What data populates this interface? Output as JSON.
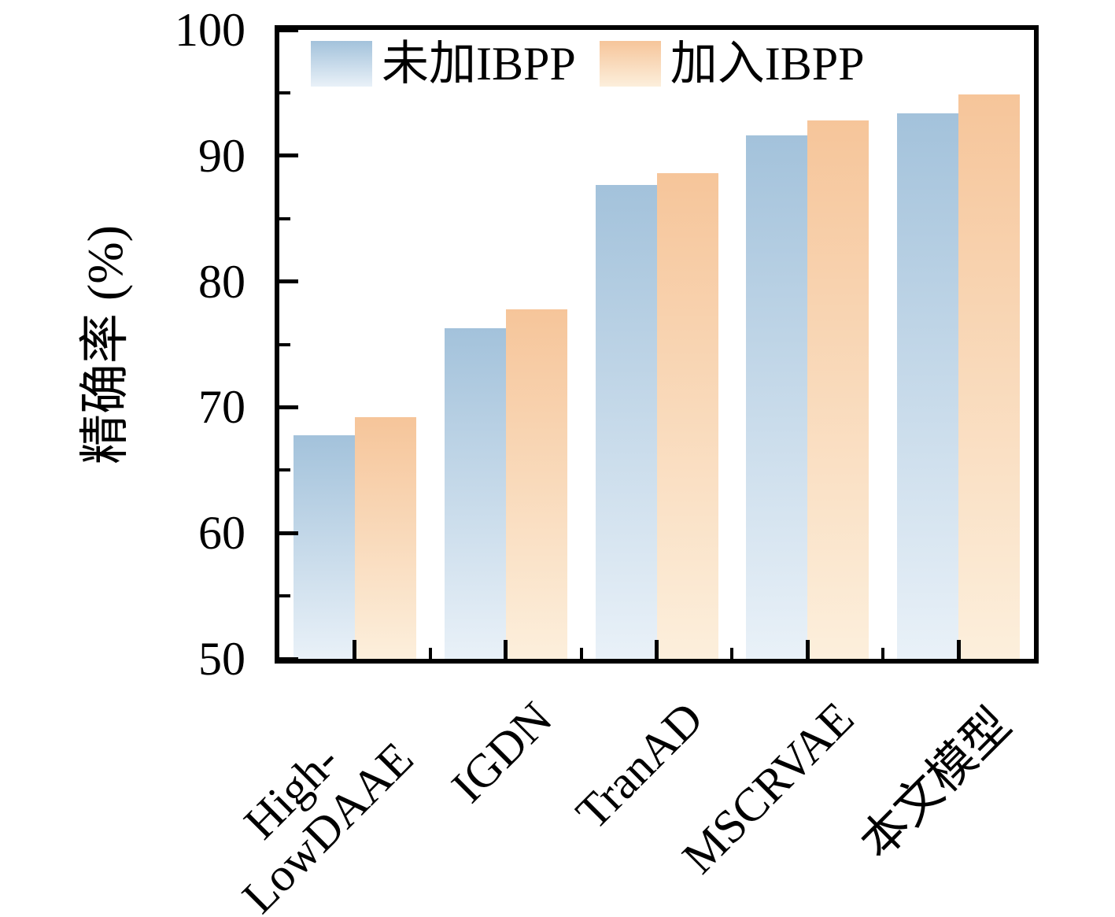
{
  "figure": {
    "background": "#ffffff"
  },
  "chart_data": {
    "type": "bar",
    "title": "",
    "categories": [
      "High-\nLowDAAE",
      "IGDN",
      "TranAD",
      "MSCRVAE",
      "本文模型"
    ],
    "series": [
      {
        "name": "未加IBPP",
        "values": [
          67.8,
          76.3,
          87.7,
          91.6,
          93.4
        ],
        "color_top": "#a3c2db",
        "color_bottom": "#e9f1f8"
      },
      {
        "name": "加入IBPP",
        "values": [
          69.2,
          77.8,
          88.6,
          92.8,
          94.9
        ],
        "color_top": "#f6c59a",
        "color_bottom": "#fcefdc"
      }
    ],
    "xlabel": "",
    "ylabel": "精确率 (%)",
    "ylim": [
      50,
      100
    ],
    "yticks": [
      50,
      60,
      70,
      80,
      90,
      100
    ],
    "yticks_minor": [
      55,
      65,
      75,
      85,
      95
    ],
    "grid": false,
    "legend_position": "upper-left-inside",
    "tick_direction": "in",
    "axis_color": "#000000"
  }
}
